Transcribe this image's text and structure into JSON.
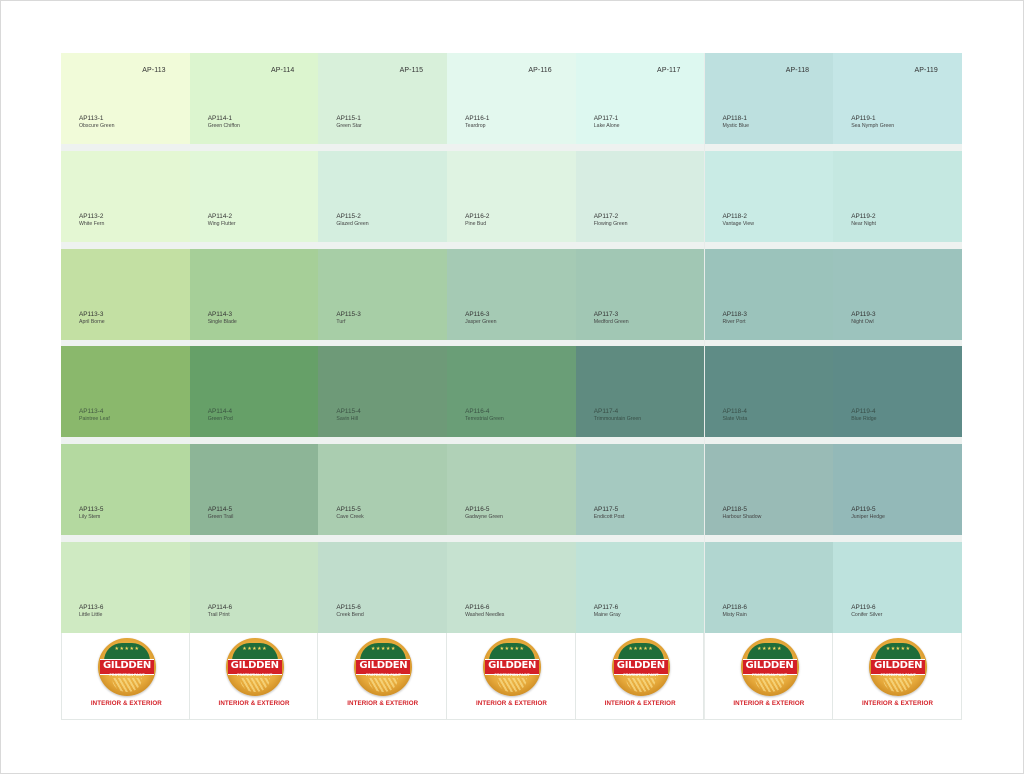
{
  "brand": {
    "logo_word": "GILDDEN",
    "logo_subtext": "PROTECTION PAINT",
    "logo_stars": "★★★★★",
    "tagline": "INTERIOR & EXTERIOR",
    "logo_colors": {
      "red": "#d42027",
      "green": "#1f6d3a",
      "gold": "#e6a93b"
    }
  },
  "columns": [
    {
      "header": "AP-113",
      "chips": [
        {
          "code": "AP113-1",
          "name": "Obscure Green",
          "color": "#f1fbd9"
        },
        {
          "code": "AP113-2",
          "name": "White Fern",
          "color": "#e4f7d3"
        },
        {
          "code": "AP113-3",
          "name": "April Borne",
          "color": "#c3e0a3"
        },
        {
          "code": "AP113-4",
          "name": "Paintree Leaf",
          "color": "#8ab86c"
        },
        {
          "code": "AP113-5",
          "name": "Lily Stem",
          "color": "#b4d9a0"
        },
        {
          "code": "AP113-6",
          "name": "Little Little",
          "color": "#cfeac2"
        }
      ]
    },
    {
      "header": "AP-114",
      "chips": [
        {
          "code": "AP114-1",
          "name": "Green Chiffon",
          "color": "#dcf5cf"
        },
        {
          "code": "AP114-2",
          "name": "Wing Flutter",
          "color": "#e1f7d8"
        },
        {
          "code": "AP114-3",
          "name": "Single Blade",
          "color": "#a6cf98"
        },
        {
          "code": "AP114-4",
          "name": "Green Pod",
          "color": "#66a068"
        },
        {
          "code": "AP114-5",
          "name": "Green Trail",
          "color": "#8db597"
        },
        {
          "code": "AP114-6",
          "name": "Trail Print",
          "color": "#c6e3c4"
        }
      ]
    },
    {
      "header": "AP-115",
      "chips": [
        {
          "code": "AP115-1",
          "name": "Green Star",
          "color": "#d8f0da"
        },
        {
          "code": "AP115-2",
          "name": "Glazed Green",
          "color": "#d4eedf"
        },
        {
          "code": "AP115-3",
          "name": "Turf",
          "color": "#a7cea6"
        },
        {
          "code": "AP115-4",
          "name": "Savin Hill",
          "color": "#6e9a78"
        },
        {
          "code": "AP115-5",
          "name": "Cave Creek",
          "color": "#aacdb0"
        },
        {
          "code": "AP115-6",
          "name": "Creek Bend",
          "color": "#c0ddcc"
        }
      ]
    },
    {
      "header": "AP-116",
      "chips": [
        {
          "code": "AP116-1",
          "name": "Teardrop",
          "color": "#e3f8ee"
        },
        {
          "code": "AP116-2",
          "name": "Pine Bud",
          "color": "#dff3e2"
        },
        {
          "code": "AP116-3",
          "name": "Jasper Green",
          "color": "#a5cab4"
        },
        {
          "code": "AP116-4",
          "name": "Terrestrial Green",
          "color": "#6a9e77"
        },
        {
          "code": "AP116-5",
          "name": "Gadwyne Green",
          "color": "#b0d1b7"
        },
        {
          "code": "AP116-6",
          "name": "Washed Needles",
          "color": "#c6e2d0"
        }
      ]
    },
    {
      "header": "AP-117",
      "chips": [
        {
          "code": "AP117-1",
          "name": "Lake Alone",
          "color": "#ddf8f0"
        },
        {
          "code": "AP117-2",
          "name": "Flowing Green",
          "color": "#d7ede2"
        },
        {
          "code": "AP117-3",
          "name": "Medford Green",
          "color": "#a1c7b4"
        },
        {
          "code": "AP117-4",
          "name": "Trimmountain Green",
          "color": "#5f8b80"
        },
        {
          "code": "AP117-5",
          "name": "Endicott Post",
          "color": "#a5c9c0"
        },
        {
          "code": "AP117-6",
          "name": "Maine Gray",
          "color": "#bfe2d8"
        }
      ]
    },
    {
      "header": "AP-118",
      "chips": [
        {
          "code": "AP118-1",
          "name": "Mystic Blue",
          "color": "#bde0df"
        },
        {
          "code": "AP118-2",
          "name": "Vantage View",
          "color": "#c9ebe5"
        },
        {
          "code": "AP118-3",
          "name": "River Port",
          "color": "#9bc3bb"
        },
        {
          "code": "AP118-4",
          "name": "Slate Vista",
          "color": "#5f8c86"
        },
        {
          "code": "AP118-5",
          "name": "Harbour Shadow",
          "color": "#99bbb6"
        },
        {
          "code": "AP118-6",
          "name": "Misty Rain",
          "color": "#b1d6d0"
        }
      ]
    },
    {
      "header": "AP-119",
      "chips": [
        {
          "code": "AP119-1",
          "name": "Sea Nymph Green",
          "color": "#c4e6e6"
        },
        {
          "code": "AP119-2",
          "name": "Near Night",
          "color": "#c5e8e1"
        },
        {
          "code": "AP119-3",
          "name": "Night Owl",
          "color": "#9cc3bd"
        },
        {
          "code": "AP119-4",
          "name": "Blue Ridge",
          "color": "#5e8b88"
        },
        {
          "code": "AP119-5",
          "name": "Juniper Hedge",
          "color": "#93b9b8"
        },
        {
          "code": "AP119-6",
          "name": "Conifer Silver",
          "color": "#bde2dd"
        }
      ]
    }
  ]
}
